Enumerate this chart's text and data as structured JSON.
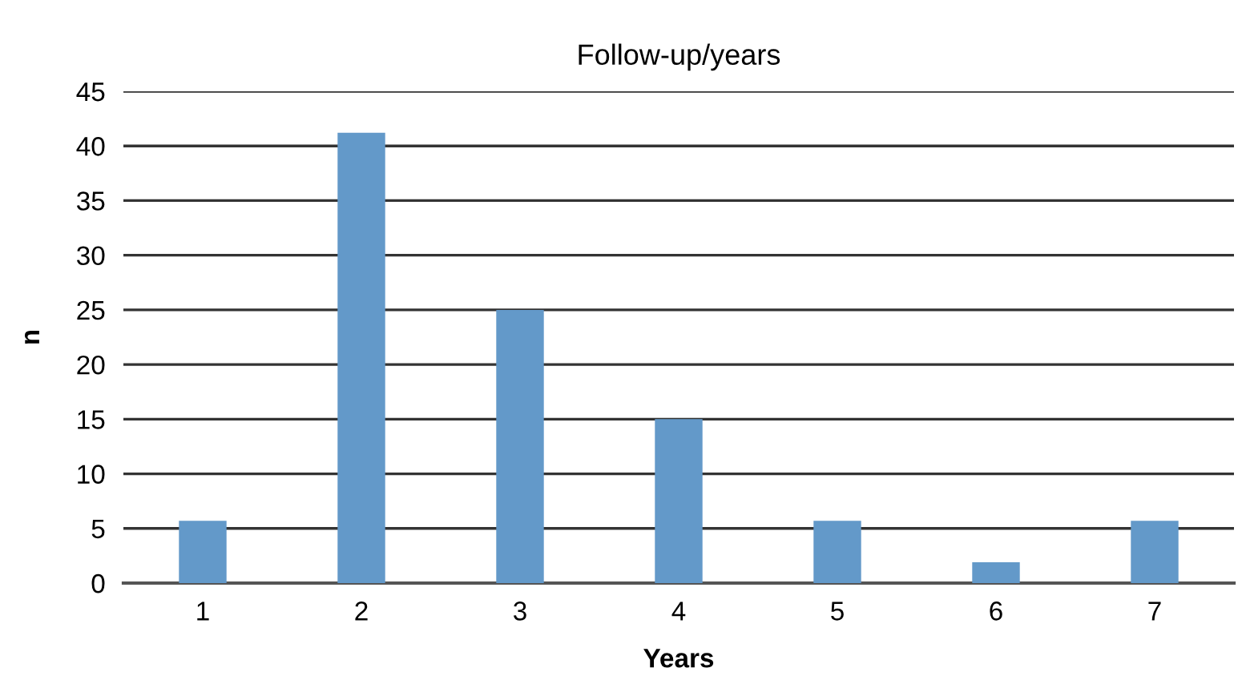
{
  "chart_data": {
    "type": "bar",
    "title": "Follow-up/years",
    "xlabel": "Years",
    "ylabel": "n",
    "categories": [
      "1",
      "2",
      "3",
      "4",
      "5",
      "6",
      "7"
    ],
    "values": [
      5.7,
      41.2,
      25,
      15,
      5.7,
      1.9,
      5.7
    ],
    "color": "#6399c9",
    "ylim": [
      0,
      45
    ],
    "yticks": [
      0,
      5,
      10,
      15,
      20,
      25,
      30,
      35,
      40,
      45
    ],
    "grid": "y",
    "legend": false
  }
}
